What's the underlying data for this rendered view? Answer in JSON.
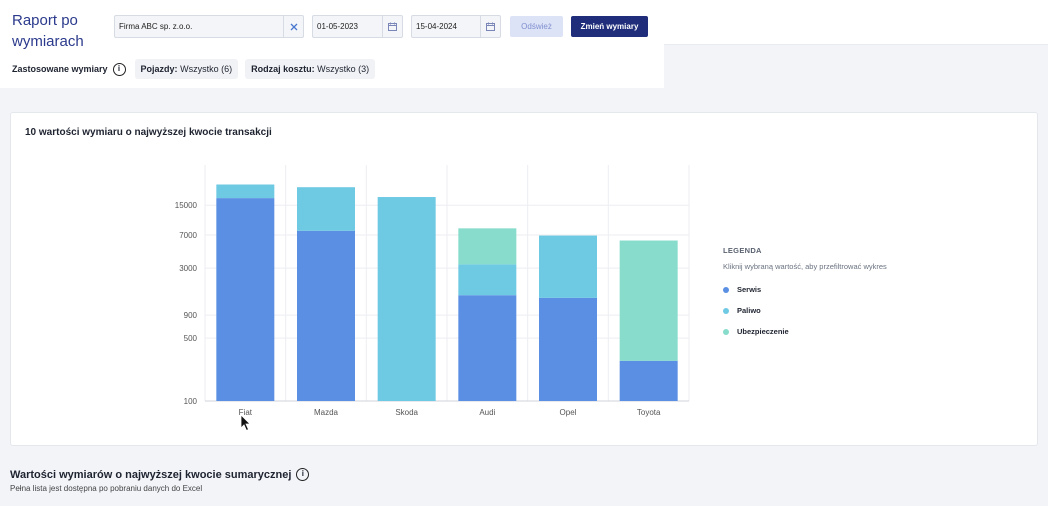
{
  "header": {
    "title": "Raport po wymiarach",
    "company": "Firma ABC sp. z.o.o.",
    "date_from": "01-05-2023",
    "date_to": "15-04-2024",
    "refresh_label": "Odśwież",
    "change_label": "Zmień wymiary"
  },
  "applied": {
    "label": "Zastosowane wymiary",
    "chips": [
      {
        "key": "Pojazdy:",
        "value": "Wszystko (6)"
      },
      {
        "key": "Rodzaj kosztu:",
        "value": "Wszystko (3)"
      }
    ]
  },
  "card": {
    "title": "10 wartości wymiaru o najwyższej kwocie transakcji"
  },
  "legend": {
    "title": "LEGENDA",
    "hint": "Kliknij wybraną wartość, aby przefiltrować wykres",
    "colors": {
      "Serwis": "#5b8fe3",
      "Paliwo": "#6ec9e3",
      "Ubezpieczenie": "#87dccb"
    }
  },
  "section2": {
    "title": "Wartości wymiarów o najwyższej kwocie sumarycznej",
    "subtitle": "Pełna lista jest dostępna po pobraniu danych do Excel"
  },
  "chart_data": {
    "type": "bar",
    "stacked": true,
    "scale": "log",
    "categories": [
      "Fiat",
      "Mazda",
      "Skoda",
      "Audi",
      "Opel",
      "Toyota"
    ],
    "y_ticks": [
      100,
      500,
      900,
      3000,
      7000,
      15000
    ],
    "ylim": [
      100,
      42000
    ],
    "series": [
      {
        "name": "Serwis",
        "values": [
          18000,
          7800,
          0,
          1500,
          1400,
          280
        ]
      },
      {
        "name": "Paliwo",
        "values": [
          7500,
          16000,
          18500,
          1800,
          5500,
          0
        ]
      },
      {
        "name": "Ubezpieczenie",
        "values": [
          0,
          0,
          0,
          5000,
          0,
          5800
        ]
      }
    ]
  }
}
